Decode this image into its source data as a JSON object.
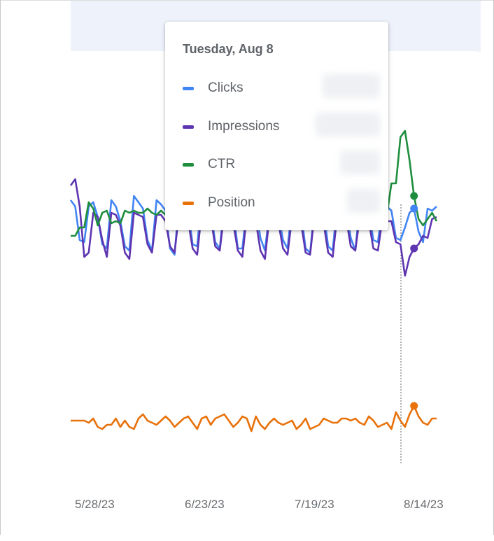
{
  "chart_data": {
    "type": "line",
    "x_tick_labels": [
      "5/28/23",
      "6/23/23",
      "7/19/23",
      "8/14/23"
    ],
    "highlight_index": 76,
    "series": [
      {
        "name": "Clicks",
        "color": "#4285f4",
        "values": [
          63,
          60,
          44,
          43,
          60,
          62,
          55,
          42,
          40,
          63,
          60,
          53,
          41,
          39,
          65,
          62,
          59,
          44,
          39,
          63,
          61,
          58,
          40,
          37,
          63,
          61,
          58,
          42,
          41,
          64,
          62,
          58,
          43,
          40,
          62,
          63,
          58,
          40,
          40,
          60,
          62,
          59,
          45,
          39,
          57,
          61,
          56,
          44,
          40,
          60,
          61,
          57,
          40,
          38,
          60,
          59,
          58,
          41,
          39,
          62,
          62,
          59,
          45,
          39,
          61,
          61,
          58,
          44,
          43,
          60,
          60,
          58,
          45,
          44,
          50,
          57,
          59,
          48,
          43,
          59,
          58,
          60
        ]
      },
      {
        "name": "Impressions",
        "color": "#5e35b1",
        "values": [
          70,
          73,
          60,
          36,
          38,
          57,
          55,
          44,
          36,
          57,
          56,
          51,
          38,
          35,
          57,
          56,
          55,
          42,
          38,
          56,
          56,
          53,
          41,
          38,
          57,
          55,
          53,
          40,
          37,
          57,
          55,
          55,
          41,
          39,
          57,
          55,
          52,
          39,
          36,
          56,
          55,
          53,
          39,
          35,
          55,
          54,
          52,
          40,
          37,
          55,
          55,
          52,
          38,
          37,
          57,
          54,
          52,
          38,
          36,
          56,
          54,
          54,
          41,
          39,
          55,
          55,
          53,
          40,
          39,
          54,
          53,
          53,
          43,
          42,
          27,
          36,
          40,
          42,
          46,
          45,
          54,
          55
        ]
      },
      {
        "name": "CTR",
        "color": "#1e8e3e",
        "values": [
          46,
          46,
          50,
          50,
          62,
          59,
          51,
          57,
          58,
          52,
          53,
          52,
          58,
          57,
          58,
          57,
          57,
          59,
          57,
          56,
          58,
          56,
          57,
          56,
          60,
          60,
          61,
          59,
          60,
          58,
          55,
          55,
          59,
          58,
          57,
          60,
          59,
          59,
          56,
          55,
          60,
          58,
          58,
          57,
          57,
          56,
          57,
          58,
          58,
          58,
          62,
          62,
          58,
          57,
          56,
          56,
          56,
          59,
          59,
          57,
          58,
          56,
          57,
          56,
          55,
          53,
          57,
          58,
          57,
          54,
          56,
          71,
          71,
          93,
          96,
          82,
          65,
          54,
          51,
          54,
          57,
          53
        ]
      },
      {
        "name": "Position",
        "color": "#e8710a",
        "values": [
          -42,
          -42,
          -42,
          -42,
          -43,
          -41,
          -45,
          -46,
          -44,
          -44,
          -41,
          -45,
          -42,
          -45,
          -46,
          -41,
          -39,
          -42,
          -43,
          -44,
          -42,
          -40,
          -42,
          -45,
          -43,
          -41,
          -40,
          -43,
          -46,
          -41,
          -40,
          -44,
          -41,
          -40,
          -39,
          -42,
          -45,
          -43,
          -40,
          -41,
          -47,
          -40,
          -44,
          -46,
          -43,
          -41,
          -43,
          -44,
          -43,
          -42,
          -46,
          -44,
          -41,
          -46,
          -45,
          -44,
          -41,
          -42,
          -43,
          -43,
          -41,
          -41,
          -42,
          -41,
          -43,
          -44,
          -40,
          -42,
          -45,
          -44,
          -43,
          -46,
          -38,
          -42,
          -45,
          -39,
          -35,
          -40,
          -43,
          -44,
          -41,
          -41
        ]
      }
    ]
  },
  "tooltip": {
    "title": "Tuesday, Aug 8",
    "items": [
      {
        "label": "Clicks",
        "color": "#4285f4"
      },
      {
        "label": "Impressions",
        "color": "#5e35b1"
      },
      {
        "label": "CTR",
        "color": "#1e8e3e"
      },
      {
        "label": "Position",
        "color": "#e8710a"
      }
    ]
  },
  "colors": {
    "top_band": "#eef2fb",
    "axis_text": "#6b6f73"
  }
}
